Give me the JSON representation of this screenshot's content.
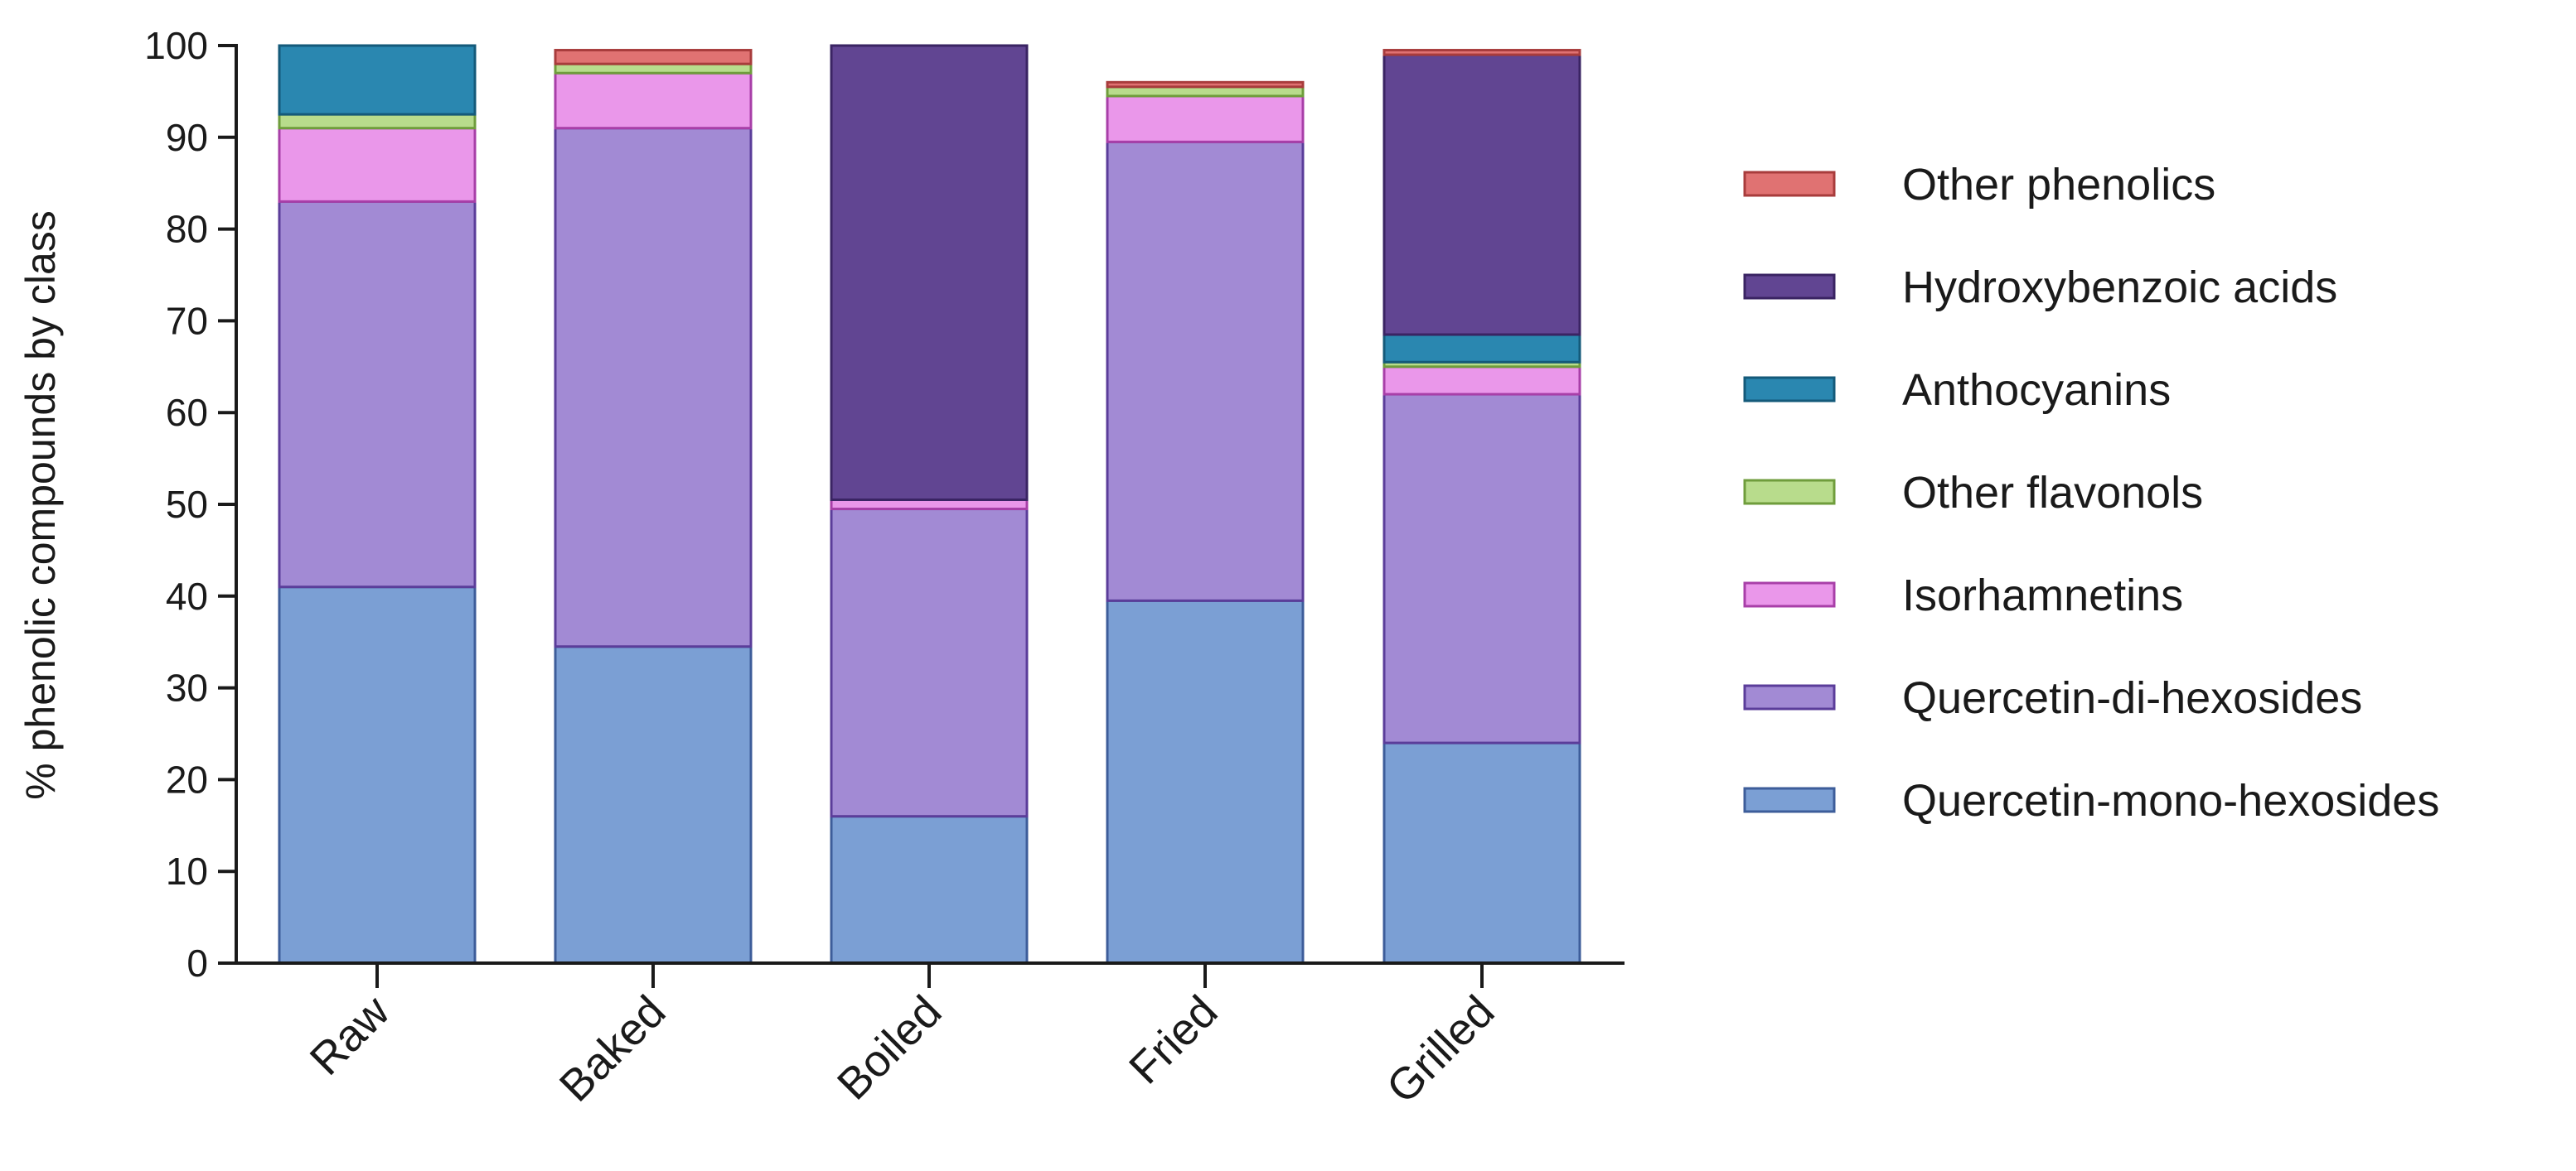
{
  "chart_data": {
    "type": "bar",
    "stacked": true,
    "title": "",
    "xlabel": "",
    "ylabel": "% phenolic compounds by class",
    "ylim": [
      0,
      100
    ],
    "yticks": [
      0,
      10,
      20,
      30,
      40,
      50,
      60,
      70,
      80,
      90,
      100
    ],
    "grid": false,
    "legend_position": "right",
    "categories": [
      "Raw",
      "Baked",
      "Boiled",
      "Fried",
      "Grilled"
    ],
    "series": [
      {
        "name": "Quercetin-mono-hexosides",
        "color": "#7b9fd4",
        "stroke": "#3d5d9a",
        "values": [
          41,
          34.5,
          16,
          39.5,
          24
        ]
      },
      {
        "name": "Quercetin-di-hexosides",
        "color": "#a28ad4",
        "stroke": "#5b3d9a",
        "values": [
          42,
          56.5,
          33.5,
          50,
          38
        ]
      },
      {
        "name": "Isorhamnetins",
        "color": "#ea97ea",
        "stroke": "#a83fa8",
        "values": [
          8,
          6,
          1,
          5,
          3
        ]
      },
      {
        "name": "Other flavonols",
        "color": "#b8dc8c",
        "stroke": "#6f9d3c",
        "values": [
          1.5,
          1,
          0,
          1,
          0.5
        ]
      },
      {
        "name": "Anthocyanins",
        "color": "#2a87b0",
        "stroke": "#145a7a",
        "values": [
          7.5,
          0,
          0,
          0,
          3
        ]
      },
      {
        "name": "Hydroxybenzoic acids",
        "color": "#614592",
        "stroke": "#3a2463",
        "values": [
          0,
          0,
          49.5,
          0,
          30.5
        ]
      },
      {
        "name": "Other phenolics",
        "color": "#e07272",
        "stroke": "#a83c3c",
        "values": [
          0,
          1.5,
          0,
          0.5,
          0.5
        ]
      }
    ]
  }
}
